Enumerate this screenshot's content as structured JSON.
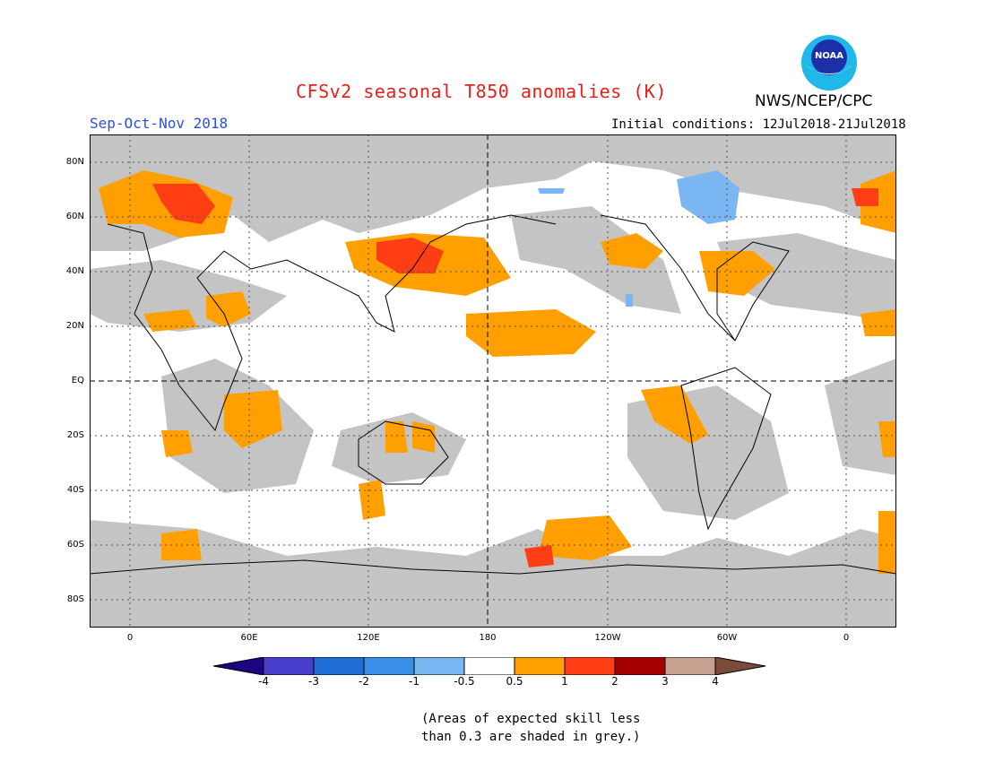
{
  "title": "CFSv2 seasonal T850 anomalies (K)",
  "organization": "NWS/NCEP/CPC",
  "logo": {
    "icon": "noaa-logo-icon",
    "text": "NOAA"
  },
  "season": "Sep-Oct-Nov 2018",
  "initial_conditions": "Initial conditions: 12Jul2018-21Jul2018",
  "latitude_labels": [
    "80N",
    "60N",
    "40N",
    "20N",
    "EQ",
    "20S",
    "40S",
    "60S",
    "80S"
  ],
  "longitude_labels": [
    "0",
    "60E",
    "120E",
    "180",
    "120W",
    "60W",
    "0"
  ],
  "colorbar": {
    "labels": [
      "-4",
      "-3",
      "-2",
      "-1",
      "-0.5",
      "0.5",
      "1",
      "2",
      "3",
      "4"
    ],
    "colors": [
      "#1c0482",
      "#4a3fcc",
      "#1f6fd6",
      "#3a90e8",
      "#79b6f2",
      "#ffffff",
      "#ffa000",
      "#ff3e16",
      "#a50000",
      "#c8a090",
      "#7a4a3a"
    ]
  },
  "colors": {
    "skill_grey": "#c4c4c4",
    "positive_anomaly": "#ffa000",
    "strong_positive_anomaly": "#ff3e16",
    "negative_anomaly": "#79b6f2"
  },
  "note": [
    "(Areas of expected skill less",
    "than 0.3 are shaded in grey.)"
  ]
}
